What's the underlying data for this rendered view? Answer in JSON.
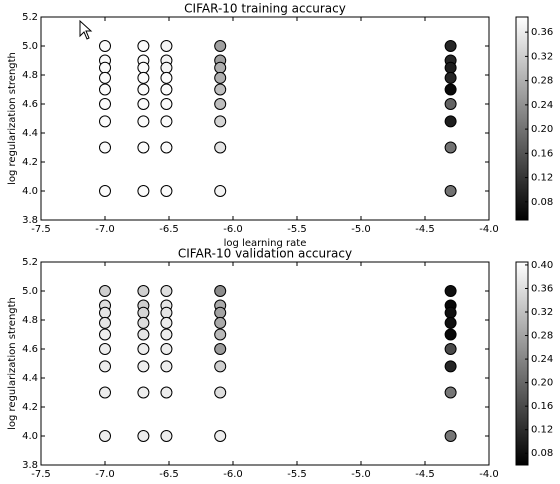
{
  "chart_data": [
    {
      "type": "scatter",
      "title": "CIFAR-10 training accuracy",
      "xlabel": "log learning rate",
      "ylabel": "log regularization strength",
      "x": [
        -7.0,
        -7.0,
        -7.0,
        -7.0,
        -7.0,
        -7.0,
        -7.0,
        -7.0,
        -7.0,
        -6.7,
        -6.7,
        -6.7,
        -6.7,
        -6.7,
        -6.7,
        -6.7,
        -6.7,
        -6.7,
        -6.52,
        -6.52,
        -6.52,
        -6.52,
        -6.52,
        -6.52,
        -6.52,
        -6.52,
        -6.52,
        -6.1,
        -6.1,
        -6.1,
        -6.1,
        -6.1,
        -6.1,
        -6.1,
        -6.1,
        -6.1,
        -4.3,
        -4.3,
        -4.3,
        -4.3,
        -4.3,
        -4.3,
        -4.3,
        -4.3,
        -4.3
      ],
      "y": [
        5.0,
        4.9,
        4.85,
        4.78,
        4.7,
        4.6,
        4.48,
        4.3,
        4.0,
        5.0,
        4.9,
        4.85,
        4.78,
        4.7,
        4.6,
        4.48,
        4.3,
        4.0,
        5.0,
        4.9,
        4.85,
        4.78,
        4.7,
        4.6,
        4.48,
        4.3,
        4.0,
        5.0,
        4.9,
        4.85,
        4.78,
        4.7,
        4.6,
        4.48,
        4.3,
        4.0,
        5.0,
        4.9,
        4.85,
        4.78,
        4.7,
        4.6,
        4.48,
        4.3,
        4.0
      ],
      "values": [
        0.38,
        0.38,
        0.38,
        0.38,
        0.38,
        0.38,
        0.38,
        0.38,
        0.38,
        0.38,
        0.38,
        0.38,
        0.38,
        0.38,
        0.38,
        0.38,
        0.38,
        0.38,
        0.37,
        0.37,
        0.37,
        0.38,
        0.38,
        0.38,
        0.38,
        0.38,
        0.38,
        0.26,
        0.26,
        0.28,
        0.28,
        0.3,
        0.3,
        0.33,
        0.35,
        0.37,
        0.1,
        0.1,
        0.09,
        0.1,
        0.06,
        0.18,
        0.09,
        0.2,
        0.2
      ],
      "colormap": "gray",
      "clim": [
        0.05,
        0.385
      ],
      "cticks": [
        0.08,
        0.12,
        0.16,
        {
          "value": 0.2,
          "label": "0.20"
        },
        0.24,
        0.28,
        0.32,
        0.36
      ],
      "xlim": [
        -7.5,
        -4
      ],
      "xticks": [
        -7.5,
        {
          "value": -7,
          "label": "-7.0"
        },
        -6.5,
        {
          "value": -6,
          "label": "-6.0"
        },
        -5.5,
        {
          "value": -5,
          "label": "-5.0"
        },
        -4.5,
        {
          "value": -4,
          "label": "-4.0"
        }
      ],
      "ylim": [
        3.8,
        5.2
      ],
      "yticks": [
        3.8,
        {
          "value": 4,
          "label": "4.0"
        },
        4.2,
        4.4,
        4.6,
        4.8,
        {
          "value": 5,
          "label": "5.0"
        },
        5.2
      ]
    },
    {
      "type": "scatter",
      "title": "CIFAR-10 validation accuracy",
      "ylabel": "log regularization strength",
      "x": [
        -7.0,
        -7.0,
        -7.0,
        -7.0,
        -7.0,
        -7.0,
        -7.0,
        -7.0,
        -7.0,
        -6.7,
        -6.7,
        -6.7,
        -6.7,
        -6.7,
        -6.7,
        -6.7,
        -6.7,
        -6.7,
        -6.52,
        -6.52,
        -6.52,
        -6.52,
        -6.52,
        -6.52,
        -6.52,
        -6.52,
        -6.52,
        -6.1,
        -6.1,
        -6.1,
        -6.1,
        -6.1,
        -6.1,
        -6.1,
        -6.1,
        -6.1,
        -4.3,
        -4.3,
        -4.3,
        -4.3,
        -4.3,
        -4.3,
        -4.3,
        -4.3,
        -4.3
      ],
      "y": [
        5.0,
        4.9,
        4.85,
        4.78,
        4.7,
        4.6,
        4.48,
        4.3,
        4.0,
        5.0,
        4.9,
        4.85,
        4.78,
        4.7,
        4.6,
        4.48,
        4.3,
        4.0,
        5.0,
        4.9,
        4.85,
        4.78,
        4.7,
        4.6,
        4.48,
        4.3,
        4.0,
        5.0,
        4.9,
        4.85,
        4.78,
        4.7,
        4.6,
        4.48,
        4.3,
        4.0,
        5.0,
        4.9,
        4.85,
        4.78,
        4.7,
        4.6,
        4.48,
        4.3,
        4.0
      ],
      "values": [
        0.34,
        0.36,
        0.37,
        0.37,
        0.38,
        0.38,
        0.38,
        0.38,
        0.38,
        0.34,
        0.34,
        0.35,
        0.36,
        0.37,
        0.38,
        0.38,
        0.38,
        0.38,
        0.36,
        0.37,
        0.37,
        0.38,
        0.38,
        0.38,
        0.38,
        0.38,
        0.38,
        0.25,
        0.29,
        0.28,
        0.29,
        0.31,
        0.27,
        0.34,
        0.36,
        0.38,
        0.08,
        0.07,
        0.08,
        0.08,
        0.07,
        0.16,
        0.11,
        0.22,
        0.22
      ],
      "colormap": "gray",
      "clim": [
        0.06,
        0.405
      ],
      "cticks": [
        0.08,
        0.12,
        0.16,
        {
          "value": 0.2,
          "label": "0.20"
        },
        0.24,
        0.28,
        0.32,
        0.36,
        {
          "value": 0.4,
          "label": "0.40"
        }
      ],
      "xlim": [
        -7.5,
        -4
      ],
      "xticks": [
        -7.5,
        {
          "value": -7,
          "label": "-7.0"
        },
        -6.5,
        {
          "value": -6,
          "label": "-6.0"
        },
        -5.5,
        {
          "value": -5,
          "label": "-5.0"
        },
        -4.5,
        {
          "value": -4,
          "label": "-4.0"
        }
      ],
      "ylim": [
        3.8,
        5.2
      ],
      "yticks": [
        3.8,
        {
          "value": 4,
          "label": "4.0"
        },
        4.2,
        4.4,
        4.6,
        4.8,
        {
          "value": 5,
          "label": "5.0"
        },
        5.2
      ]
    }
  ]
}
